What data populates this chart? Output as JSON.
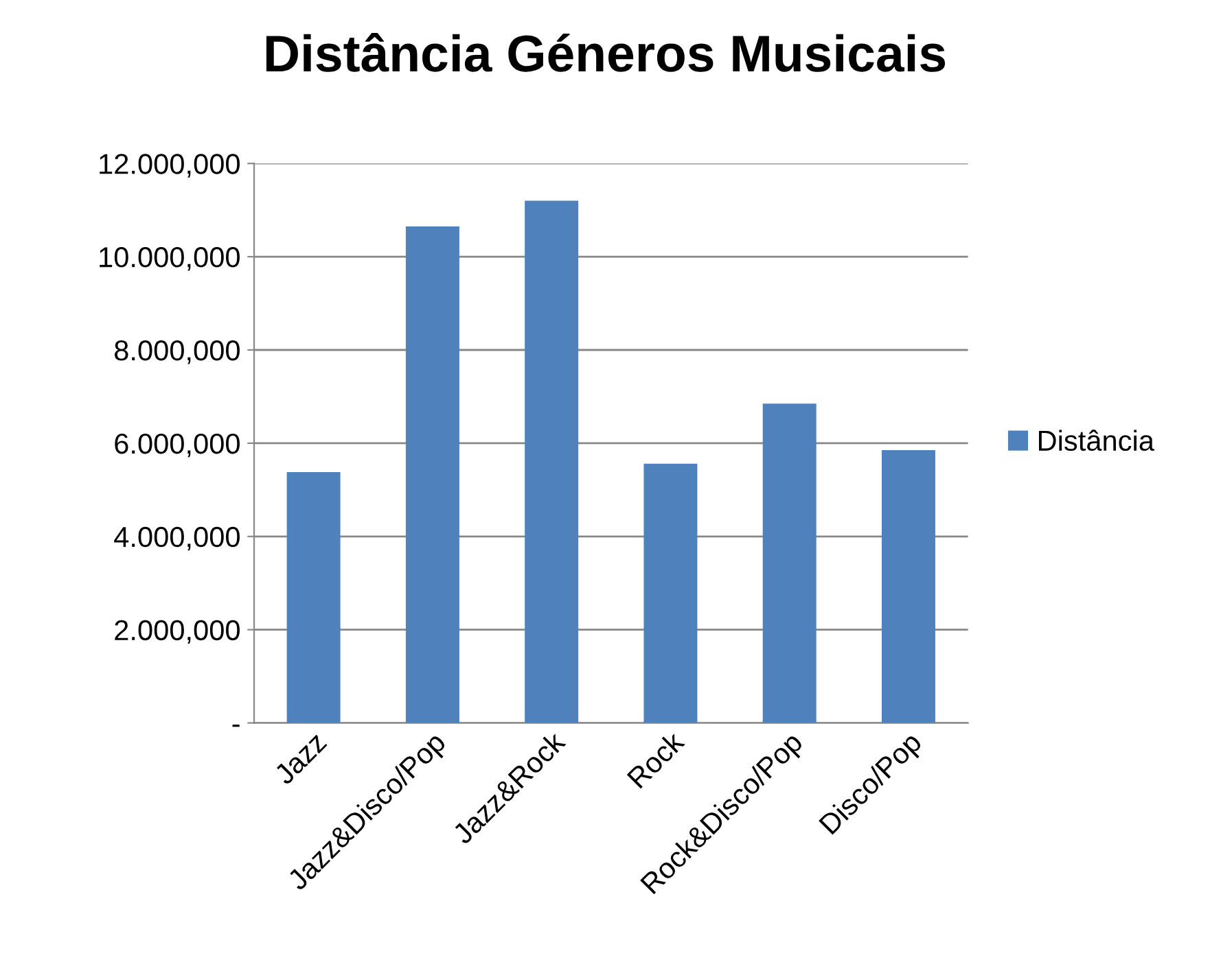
{
  "chart_data": {
    "type": "bar",
    "title": "Distância Géneros Musicais",
    "categories": [
      "Jazz",
      "Jazz&Disco/Pop",
      "Jazz&Rock",
      "Rock",
      "Rock&Disco/Pop",
      "Disco/Pop"
    ],
    "series": [
      {
        "name": "Distância",
        "color": "#4f81bd",
        "values": [
          5380,
          10650,
          11200,
          5560,
          6850,
          5850
        ]
      }
    ],
    "ylim": [
      0,
      12000
    ],
    "yticks": [
      {
        "value": 0,
        "label": "-"
      },
      {
        "value": 2000,
        "label": "2.000,000"
      },
      {
        "value": 4000,
        "label": "4.000,000"
      },
      {
        "value": 6000,
        "label": "6.000,000"
      },
      {
        "value": 8000,
        "label": "8.000,000"
      },
      {
        "value": 10000,
        "label": "10.000,000"
      },
      {
        "value": 12000,
        "label": "12.000,000"
      }
    ],
    "grid": "y",
    "legend": "right"
  }
}
